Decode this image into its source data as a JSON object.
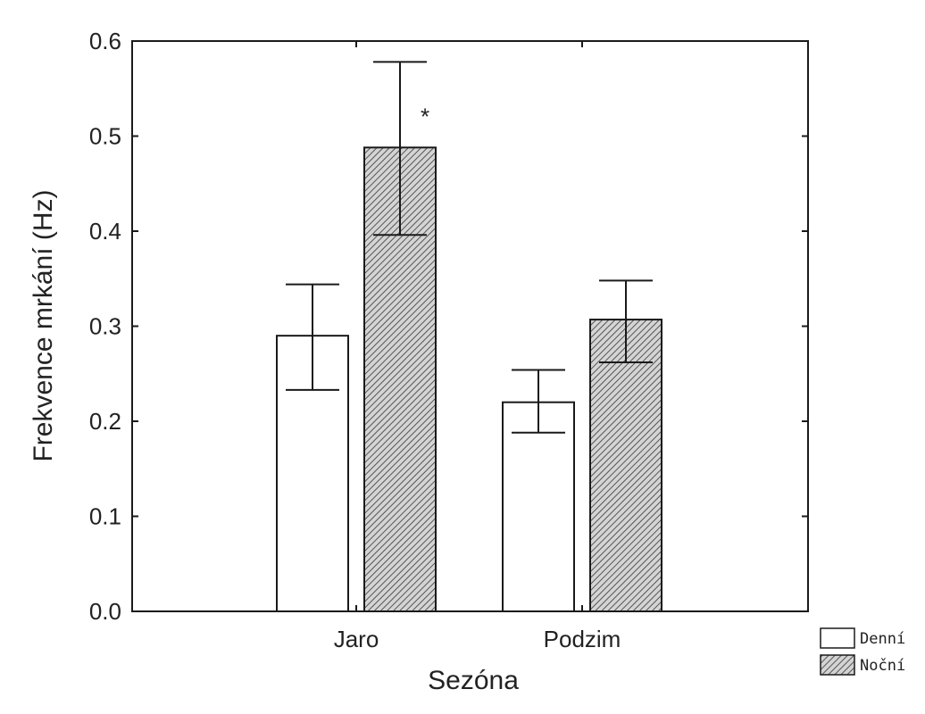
{
  "chart_data": {
    "type": "bar",
    "title": "",
    "xlabel": "Sezóna",
    "ylabel": "Frekvence mrkání (Hz)",
    "ylim": [
      0,
      0.6
    ],
    "yticks": [
      "0.0",
      "0.1",
      "0.2",
      "0.3",
      "0.4",
      "0.5",
      "0.6"
    ],
    "categories": [
      "Jaro",
      "Podzim"
    ],
    "series": [
      {
        "name": "Denní",
        "pattern": "none",
        "values": [
          0.29,
          0.22
        ],
        "err_low": [
          0.233,
          0.188
        ],
        "err_high": [
          0.344,
          0.254
        ]
      },
      {
        "name": "Noční",
        "pattern": "hatch",
        "values": [
          0.488,
          0.307
        ],
        "err_low": [
          0.396,
          0.262
        ],
        "err_high": [
          0.578,
          0.348
        ]
      }
    ],
    "annotations": [
      {
        "category": "Jaro",
        "series": "Noční",
        "text": "*"
      }
    ],
    "legend": "bottom-right, outside plot",
    "grid": false,
    "colors": {
      "frame": "#1a1a1a",
      "fill_plain": "#ffffff",
      "hatch": "#555555"
    }
  }
}
